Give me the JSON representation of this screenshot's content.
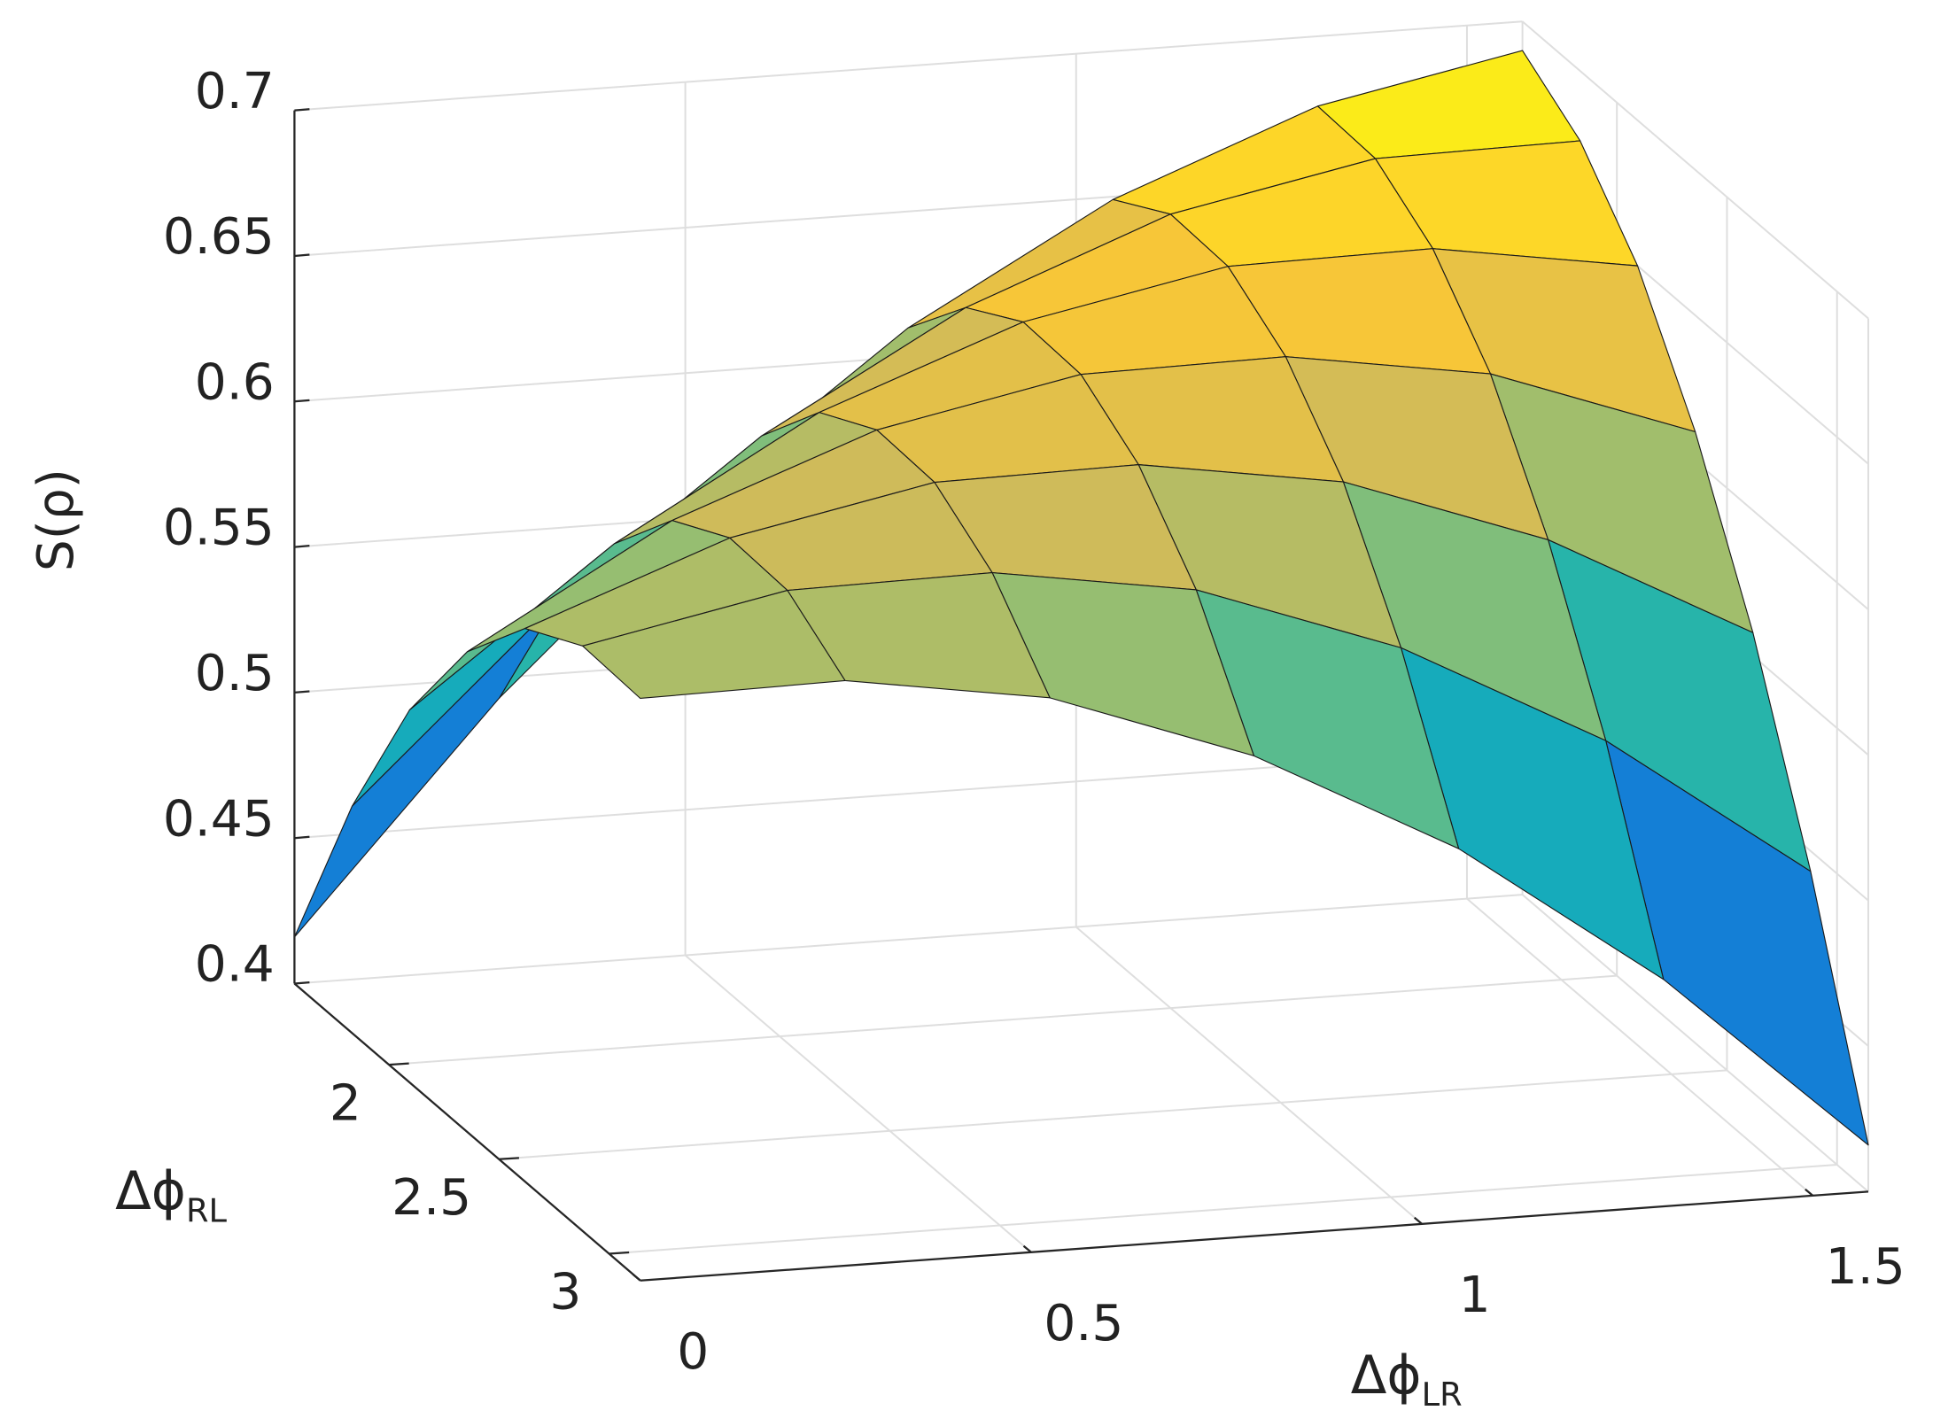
{
  "chart_data": {
    "type": "surface",
    "zlabel": "S(ρ)",
    "xlabel": {
      "text": "Δϕ",
      "sub": "LR"
    },
    "ylabel": {
      "text": "Δϕ",
      "sub": "RL"
    },
    "x": [
      0,
      0.262,
      0.524,
      0.785,
      1.047,
      1.309,
      1.571
    ],
    "y": [
      1.571,
      1.833,
      2.094,
      2.356,
      2.618,
      2.88,
      3.142
    ],
    "z": [
      [
        0.416,
        0.493,
        0.558,
        0.61,
        0.649,
        0.676,
        0.69
      ],
      [
        0.478,
        0.543,
        0.595,
        0.634,
        0.661,
        0.675,
        0.676
      ],
      [
        0.528,
        0.58,
        0.62,
        0.646,
        0.66,
        0.661,
        0.65
      ],
      [
        0.565,
        0.605,
        0.631,
        0.645,
        0.646,
        0.635,
        0.61
      ],
      [
        0.59,
        0.616,
        0.63,
        0.631,
        0.62,
        0.595,
        0.558
      ],
      [
        0.601,
        0.615,
        0.616,
        0.605,
        0.58,
        0.543,
        0.493
      ],
      [
        0.6,
        0.601,
        0.59,
        0.565,
        0.528,
        0.478,
        0.416
      ]
    ],
    "xlim": [
      0,
      1.571
    ],
    "ylim": [
      1.571,
      3.142
    ],
    "zlim": [
      0.4,
      0.7
    ],
    "xticks": [
      0,
      0.5,
      1,
      1.5
    ],
    "yticks": [
      2,
      2.5,
      3
    ],
    "zticks": [
      0.4,
      0.45,
      0.5,
      0.55,
      0.6,
      0.65,
      0.7
    ],
    "colormap": [
      "#352a87",
      "#0f5cdd",
      "#1481d6",
      "#06a4ca",
      "#2eb7a4",
      "#87bf77",
      "#d1bb59",
      "#fec832",
      "#f9fb0e"
    ],
    "edgecolor": "#1a1a1a",
    "grid": true
  }
}
